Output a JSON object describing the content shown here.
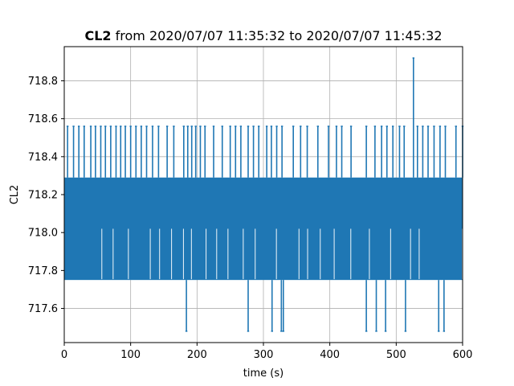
{
  "chart_data": {
    "type": "line",
    "title_bold": "CL2",
    "title_rest": " from 2020/07/07 11:35:32 to 2020/07/07 11:45:32",
    "xlabel": "time (s)",
    "ylabel": "CL2",
    "xlim": [
      0,
      600
    ],
    "ylim": [
      717.42,
      718.98
    ],
    "x_ticks": [
      0,
      100,
      200,
      300,
      400,
      500,
      600
    ],
    "y_ticks": [
      717.6,
      717.8,
      718.0,
      718.2,
      718.4,
      718.6,
      718.8
    ],
    "grid": true,
    "series_color": "#1f77b4",
    "levels": [
      717.48,
      717.75,
      718.02,
      718.29,
      718.56
    ],
    "dense_band": [
      717.75,
      718.29
    ],
    "spikes_high": [
      {
        "x": 5,
        "y": 718.56
      },
      {
        "x": 14,
        "y": 718.56
      },
      {
        "x": 22,
        "y": 718.56
      },
      {
        "x": 30,
        "y": 718.56
      },
      {
        "x": 40,
        "y": 718.56
      },
      {
        "x": 47,
        "y": 718.56
      },
      {
        "x": 55,
        "y": 718.56
      },
      {
        "x": 62,
        "y": 718.56
      },
      {
        "x": 70,
        "y": 718.56
      },
      {
        "x": 78,
        "y": 718.56
      },
      {
        "x": 85,
        "y": 718.56
      },
      {
        "x": 92,
        "y": 718.56
      },
      {
        "x": 100,
        "y": 718.56
      },
      {
        "x": 108,
        "y": 718.56
      },
      {
        "x": 116,
        "y": 718.56
      },
      {
        "x": 124,
        "y": 718.56
      },
      {
        "x": 133,
        "y": 718.56
      },
      {
        "x": 142,
        "y": 718.56
      },
      {
        "x": 155,
        "y": 718.56
      },
      {
        "x": 165,
        "y": 718.56
      },
      {
        "x": 180,
        "y": 718.56
      },
      {
        "x": 186,
        "y": 718.56
      },
      {
        "x": 192,
        "y": 718.56
      },
      {
        "x": 198,
        "y": 718.56
      },
      {
        "x": 205,
        "y": 718.56
      },
      {
        "x": 212,
        "y": 718.56
      },
      {
        "x": 225,
        "y": 718.56
      },
      {
        "x": 238,
        "y": 718.56
      },
      {
        "x": 250,
        "y": 718.56
      },
      {
        "x": 258,
        "y": 718.56
      },
      {
        "x": 266,
        "y": 718.56
      },
      {
        "x": 277,
        "y": 718.56
      },
      {
        "x": 285,
        "y": 718.56
      },
      {
        "x": 293,
        "y": 718.56
      },
      {
        "x": 305,
        "y": 718.56
      },
      {
        "x": 312,
        "y": 718.56
      },
      {
        "x": 320,
        "y": 718.56
      },
      {
        "x": 328,
        "y": 718.56
      },
      {
        "x": 345,
        "y": 718.56
      },
      {
        "x": 356,
        "y": 718.56
      },
      {
        "x": 366,
        "y": 718.56
      },
      {
        "x": 382,
        "y": 718.56
      },
      {
        "x": 398,
        "y": 718.56
      },
      {
        "x": 410,
        "y": 718.56
      },
      {
        "x": 418,
        "y": 718.56
      },
      {
        "x": 432,
        "y": 718.56
      },
      {
        "x": 455,
        "y": 718.56
      },
      {
        "x": 468,
        "y": 718.56
      },
      {
        "x": 478,
        "y": 718.56
      },
      {
        "x": 486,
        "y": 718.56
      },
      {
        "x": 495,
        "y": 718.56
      },
      {
        "x": 505,
        "y": 718.56
      },
      {
        "x": 512,
        "y": 718.56
      },
      {
        "x": 526,
        "y": 718.92
      },
      {
        "x": 532,
        "y": 718.56
      },
      {
        "x": 540,
        "y": 718.56
      },
      {
        "x": 548,
        "y": 718.56
      },
      {
        "x": 557,
        "y": 718.56
      },
      {
        "x": 566,
        "y": 718.56
      },
      {
        "x": 574,
        "y": 718.56
      },
      {
        "x": 590,
        "y": 718.56
      },
      {
        "x": 600,
        "y": 718.56
      }
    ],
    "spikes_low": [
      {
        "x": 184,
        "y": 717.48
      },
      {
        "x": 277,
        "y": 717.48
      },
      {
        "x": 313,
        "y": 717.48
      },
      {
        "x": 327,
        "y": 717.48
      },
      {
        "x": 330,
        "y": 717.48
      },
      {
        "x": 455,
        "y": 717.48
      },
      {
        "x": 470,
        "y": 717.48
      },
      {
        "x": 484,
        "y": 717.48
      },
      {
        "x": 514,
        "y": 717.48
      },
      {
        "x": 564,
        "y": 717.48
      },
      {
        "x": 572,
        "y": 717.48
      }
    ],
    "dips_mid": [
      {
        "x": 55,
        "y": 718.02
      },
      {
        "x": 72,
        "y": 718.02
      },
      {
        "x": 95,
        "y": 718.02
      },
      {
        "x": 128,
        "y": 718.02
      },
      {
        "x": 142,
        "y": 718.02
      },
      {
        "x": 160,
        "y": 718.02
      },
      {
        "x": 178,
        "y": 718.02
      },
      {
        "x": 190,
        "y": 718.02
      },
      {
        "x": 212,
        "y": 718.02
      },
      {
        "x": 228,
        "y": 718.02
      },
      {
        "x": 245,
        "y": 718.02
      },
      {
        "x": 268,
        "y": 718.02
      },
      {
        "x": 286,
        "y": 718.02
      },
      {
        "x": 318,
        "y": 718.02
      },
      {
        "x": 352,
        "y": 718.02
      },
      {
        "x": 365,
        "y": 718.02
      },
      {
        "x": 384,
        "y": 718.02
      },
      {
        "x": 405,
        "y": 718.02
      },
      {
        "x": 430,
        "y": 718.02
      },
      {
        "x": 458,
        "y": 718.02
      },
      {
        "x": 490,
        "y": 718.02
      },
      {
        "x": 520,
        "y": 718.02
      },
      {
        "x": 533,
        "y": 718.02
      },
      {
        "x": 598,
        "y": 718.02
      }
    ]
  }
}
